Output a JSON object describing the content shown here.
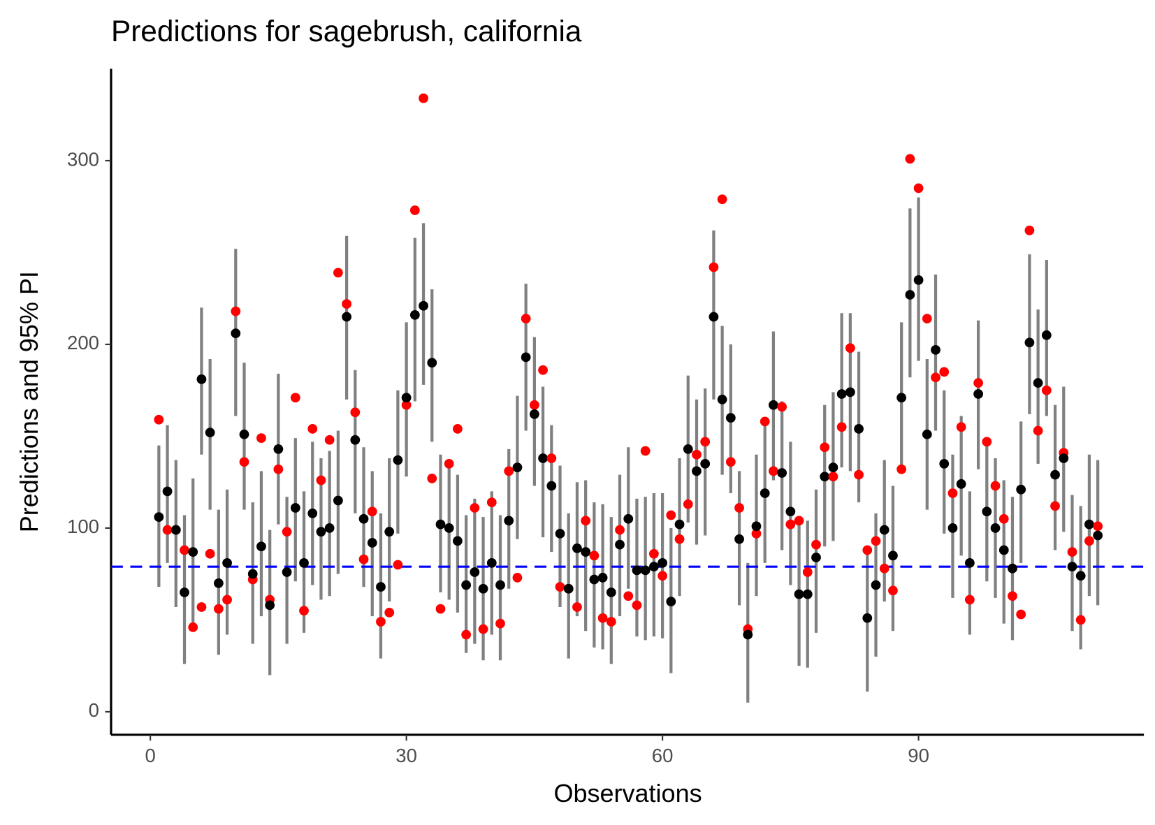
{
  "chart_data": {
    "type": "pointrange",
    "title": "Predictions for sagebrush, california",
    "x_label": "Observations",
    "y_label": "Predictions and 95% PI",
    "xlim": [
      -4.6,
      116.4
    ],
    "xticks": [
      0,
      30,
      60,
      90
    ],
    "ylim": [
      -12.5,
      350
    ],
    "yticks": [
      0,
      100,
      200,
      300
    ],
    "point_color": "#000000",
    "interval_color": "#808080",
    "observed_color": "#ff0000",
    "hline_color": "#0000ff",
    "hline": 79,
    "x": [
      1,
      2,
      3,
      4,
      5,
      6,
      7,
      8,
      9,
      10,
      11,
      12,
      13,
      14,
      15,
      16,
      17,
      18,
      19,
      20,
      21,
      22,
      23,
      24,
      25,
      26,
      27,
      28,
      29,
      30,
      31,
      32,
      33,
      34,
      35,
      36,
      37,
      38,
      39,
      40,
      41,
      42,
      43,
      44,
      45,
      46,
      47,
      48,
      49,
      50,
      51,
      52,
      53,
      54,
      55,
      56,
      57,
      58,
      59,
      60,
      61,
      62,
      63,
      64,
      65,
      66,
      67,
      68,
      69,
      70,
      71,
      72,
      73,
      74,
      75,
      76,
      77,
      78,
      79,
      80,
      81,
      82,
      83,
      84,
      85,
      86,
      87,
      88,
      89,
      90,
      91,
      92,
      93,
      94,
      95,
      96,
      97,
      98,
      99,
      100,
      101,
      102,
      103,
      104,
      105,
      106,
      107,
      108,
      109,
      110,
      111
    ],
    "values": [
      106,
      120,
      99,
      65,
      87,
      181,
      152,
      70,
      81,
      206,
      151,
      75,
      90,
      58,
      143,
      76,
      111,
      81,
      108,
      98,
      100,
      115,
      215,
      148,
      105,
      92,
      68,
      98,
      137,
      171,
      216,
      221,
      190,
      102,
      100,
      93,
      69,
      76,
      67,
      81,
      69,
      104,
      133,
      193,
      162,
      138,
      123,
      97,
      67,
      89,
      87,
      72,
      73,
      65,
      91,
      105,
      77,
      77,
      79,
      81,
      60,
      102,
      143,
      131,
      135,
      215,
      170,
      160,
      94,
      42,
      101,
      119,
      167,
      130,
      109,
      64,
      64,
      84,
      128,
      133,
      173,
      174,
      154,
      51,
      69,
      99,
      85,
      171,
      227,
      235,
      151,
      197,
      135,
      100,
      124,
      81,
      173,
      109,
      100,
      88,
      78,
      121,
      201,
      179,
      205,
      129,
      138,
      79,
      74,
      102,
      96
    ],
    "lower": [
      68,
      81,
      57,
      26,
      46,
      140,
      110,
      31,
      42,
      161,
      110,
      37,
      52,
      20,
      102,
      37,
      71,
      43,
      69,
      61,
      63,
      75,
      170,
      108,
      68,
      52,
      29,
      60,
      97,
      128,
      169,
      178,
      147,
      65,
      61,
      54,
      32,
      37,
      28,
      42,
      28,
      67,
      94,
      153,
      123,
      95,
      87,
      57,
      29,
      52,
      44,
      35,
      34,
      26,
      52,
      67,
      41,
      39,
      41,
      40,
      21,
      63,
      103,
      91,
      96,
      170,
      129,
      119,
      58,
      5,
      63,
      81,
      126,
      88,
      69,
      25,
      24,
      43,
      90,
      93,
      133,
      131,
      114,
      11,
      30,
      60,
      44,
      131,
      182,
      191,
      110,
      153,
      97,
      62,
      85,
      42,
      132,
      71,
      62,
      48,
      39,
      81,
      162,
      135,
      161,
      88,
      98,
      44,
      34,
      63,
      58
    ],
    "upper": [
      145,
      156,
      137,
      107,
      127,
      220,
      192,
      110,
      121,
      252,
      190,
      114,
      131,
      99,
      184,
      117,
      149,
      120,
      147,
      138,
      142,
      153,
      259,
      186,
      144,
      131,
      108,
      138,
      175,
      212,
      258,
      266,
      230,
      140,
      137,
      129,
      107,
      116,
      106,
      120,
      107,
      143,
      172,
      233,
      204,
      177,
      156,
      134,
      108,
      125,
      126,
      114,
      113,
      106,
      129,
      144,
      116,
      117,
      119,
      119,
      100,
      138,
      183,
      170,
      176,
      262,
      210,
      200,
      131,
      81,
      140,
      159,
      207,
      169,
      147,
      105,
      104,
      121,
      167,
      174,
      217,
      217,
      196,
      90,
      108,
      137,
      123,
      212,
      274,
      280,
      192,
      238,
      175,
      140,
      161,
      120,
      213,
      147,
      138,
      126,
      117,
      158,
      249,
      219,
      246,
      167,
      177,
      118,
      112,
      140,
      137
    ],
    "observed": [
      159,
      99,
      99,
      88,
      46,
      57,
      86,
      56,
      61,
      218,
      136,
      72,
      149,
      61,
      132,
      98,
      171,
      55,
      154,
      126,
      148,
      239,
      222,
      163,
      83,
      109,
      49,
      54,
      80,
      167,
      273,
      334,
      127,
      56,
      135,
      154,
      42,
      111,
      45,
      114,
      48,
      131,
      73,
      214,
      167,
      186,
      138,
      68,
      67,
      57,
      104,
      85,
      51,
      49,
      99,
      63,
      58,
      142,
      86,
      74,
      107,
      94,
      113,
      140,
      147,
      242,
      279,
      136,
      111,
      45,
      97,
      158,
      131,
      166,
      102,
      104,
      76,
      91,
      144,
      128,
      155,
      198,
      129,
      88,
      93,
      78,
      66,
      132,
      301,
      285,
      214,
      182,
      185,
      119,
      155,
      61,
      179,
      147,
      123,
      105,
      63,
      53,
      262,
      153,
      175,
      112,
      141,
      87,
      50,
      93,
      101
    ]
  }
}
